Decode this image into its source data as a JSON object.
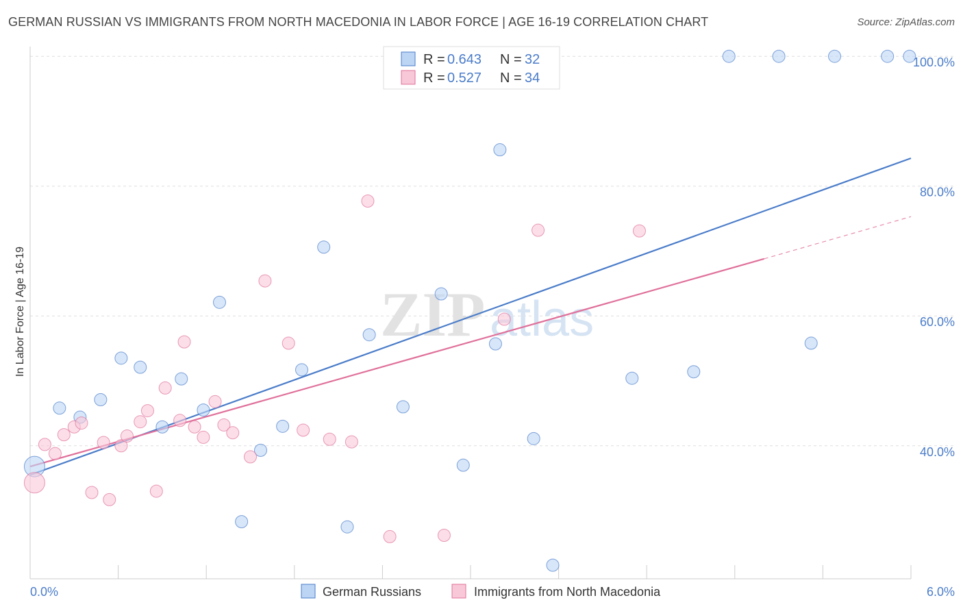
{
  "chart_data": {
    "type": "scatter",
    "title": "GERMAN RUSSIAN VS IMMIGRANTS FROM NORTH MACEDONIA IN LABOR FORCE | AGE 16-19 CORRELATION CHART",
    "source": "Source: ZipAtlas.com",
    "xlabel": "",
    "ylabel": "In Labor Force | Age 16-19",
    "xlim": [
      0,
      6
    ],
    "ylim": [
      19.5,
      101.5
    ],
    "x_tick_labels": [
      "0.0%",
      "6.0%"
    ],
    "y_ticks": [
      40,
      60,
      80,
      100
    ],
    "y_tick_labels": [
      "40.0%",
      "60.0%",
      "80.0%",
      "100.0%"
    ],
    "watermark": "ZIPatlas",
    "legend": {
      "rows": [
        {
          "r_label": "R =",
          "r_value": "0.643",
          "n_label": "N =",
          "n_value": "32"
        },
        {
          "r_label": "R =",
          "r_value": "0.527",
          "n_label": "N =",
          "n_value": "34"
        }
      ]
    },
    "series": [
      {
        "name": "German Russians",
        "color": "#4a7cc9",
        "fill": "#bcd5f5",
        "trend": {
          "x0": 0.0,
          "y0": 35.5,
          "x1": 6.0,
          "y1": 84.3
        },
        "points": [
          {
            "x": 0.03,
            "y": 36.8,
            "big": true
          },
          {
            "x": 0.2,
            "y": 45.8
          },
          {
            "x": 0.34,
            "y": 44.4
          },
          {
            "x": 0.48,
            "y": 47.1
          },
          {
            "x": 0.62,
            "y": 53.5
          },
          {
            "x": 0.75,
            "y": 52.1
          },
          {
            "x": 0.9,
            "y": 42.9
          },
          {
            "x": 1.03,
            "y": 50.3
          },
          {
            "x": 1.18,
            "y": 45.5
          },
          {
            "x": 1.29,
            "y": 62.1
          },
          {
            "x": 1.44,
            "y": 28.3
          },
          {
            "x": 1.57,
            "y": 39.3
          },
          {
            "x": 1.72,
            "y": 43.0
          },
          {
            "x": 1.85,
            "y": 51.7
          },
          {
            "x": 2.0,
            "y": 70.6
          },
          {
            "x": 2.16,
            "y": 27.5
          },
          {
            "x": 2.31,
            "y": 57.1
          },
          {
            "x": 2.54,
            "y": 46.0
          },
          {
            "x": 2.8,
            "y": 63.4
          },
          {
            "x": 2.95,
            "y": 37.0
          },
          {
            "x": 3.17,
            "y": 55.7
          },
          {
            "x": 3.2,
            "y": 85.6
          },
          {
            "x": 3.43,
            "y": 41.1
          },
          {
            "x": 3.56,
            "y": 21.6
          },
          {
            "x": 4.1,
            "y": 50.4
          },
          {
            "x": 4.52,
            "y": 51.4
          },
          {
            "x": 4.76,
            "y": 100.0
          },
          {
            "x": 5.1,
            "y": 100.0
          },
          {
            "x": 5.32,
            "y": 55.8
          },
          {
            "x": 5.48,
            "y": 100.0
          },
          {
            "x": 5.84,
            "y": 100.0
          },
          {
            "x": 5.99,
            "y": 100.0
          }
        ]
      },
      {
        "name": "Immigrants from North Macedonia",
        "color": "#e0709a",
        "fill": "#f8c8d8",
        "trend": {
          "x0": 0.0,
          "y0": 36.8,
          "x1": 5.0,
          "y1": 68.8
        },
        "trend_dashed": {
          "x0": 5.0,
          "y0": 68.8,
          "x1": 6.0,
          "y1": 75.3
        },
        "points": [
          {
            "x": 0.03,
            "y": 34.3,
            "big": true
          },
          {
            "x": 0.1,
            "y": 40.2
          },
          {
            "x": 0.17,
            "y": 38.8
          },
          {
            "x": 0.23,
            "y": 41.7
          },
          {
            "x": 0.3,
            "y": 42.9
          },
          {
            "x": 0.35,
            "y": 43.5
          },
          {
            "x": 0.42,
            "y": 32.8
          },
          {
            "x": 0.5,
            "y": 40.5
          },
          {
            "x": 0.54,
            "y": 31.7
          },
          {
            "x": 0.62,
            "y": 40.0
          },
          {
            "x": 0.66,
            "y": 41.5
          },
          {
            "x": 0.75,
            "y": 43.7
          },
          {
            "x": 0.8,
            "y": 45.4
          },
          {
            "x": 0.86,
            "y": 33.0
          },
          {
            "x": 0.92,
            "y": 48.9
          },
          {
            "x": 1.02,
            "y": 43.9
          },
          {
            "x": 1.05,
            "y": 56.0
          },
          {
            "x": 1.12,
            "y": 42.9
          },
          {
            "x": 1.18,
            "y": 41.3
          },
          {
            "x": 1.26,
            "y": 46.8
          },
          {
            "x": 1.32,
            "y": 43.2
          },
          {
            "x": 1.38,
            "y": 42.0
          },
          {
            "x": 1.5,
            "y": 38.3
          },
          {
            "x": 1.6,
            "y": 65.4
          },
          {
            "x": 1.76,
            "y": 55.8
          },
          {
            "x": 1.86,
            "y": 42.4
          },
          {
            "x": 2.04,
            "y": 41.0
          },
          {
            "x": 2.19,
            "y": 40.6
          },
          {
            "x": 2.3,
            "y": 77.7
          },
          {
            "x": 2.45,
            "y": 26.0
          },
          {
            "x": 2.82,
            "y": 26.2
          },
          {
            "x": 3.23,
            "y": 59.5
          },
          {
            "x": 3.46,
            "y": 73.2
          },
          {
            "x": 4.15,
            "y": 73.1
          }
        ]
      }
    ]
  },
  "colors": {
    "blue": "#4a7cc9",
    "pink": "#e0709a",
    "grid": "#dddddd",
    "axis": "#cccccc"
  }
}
